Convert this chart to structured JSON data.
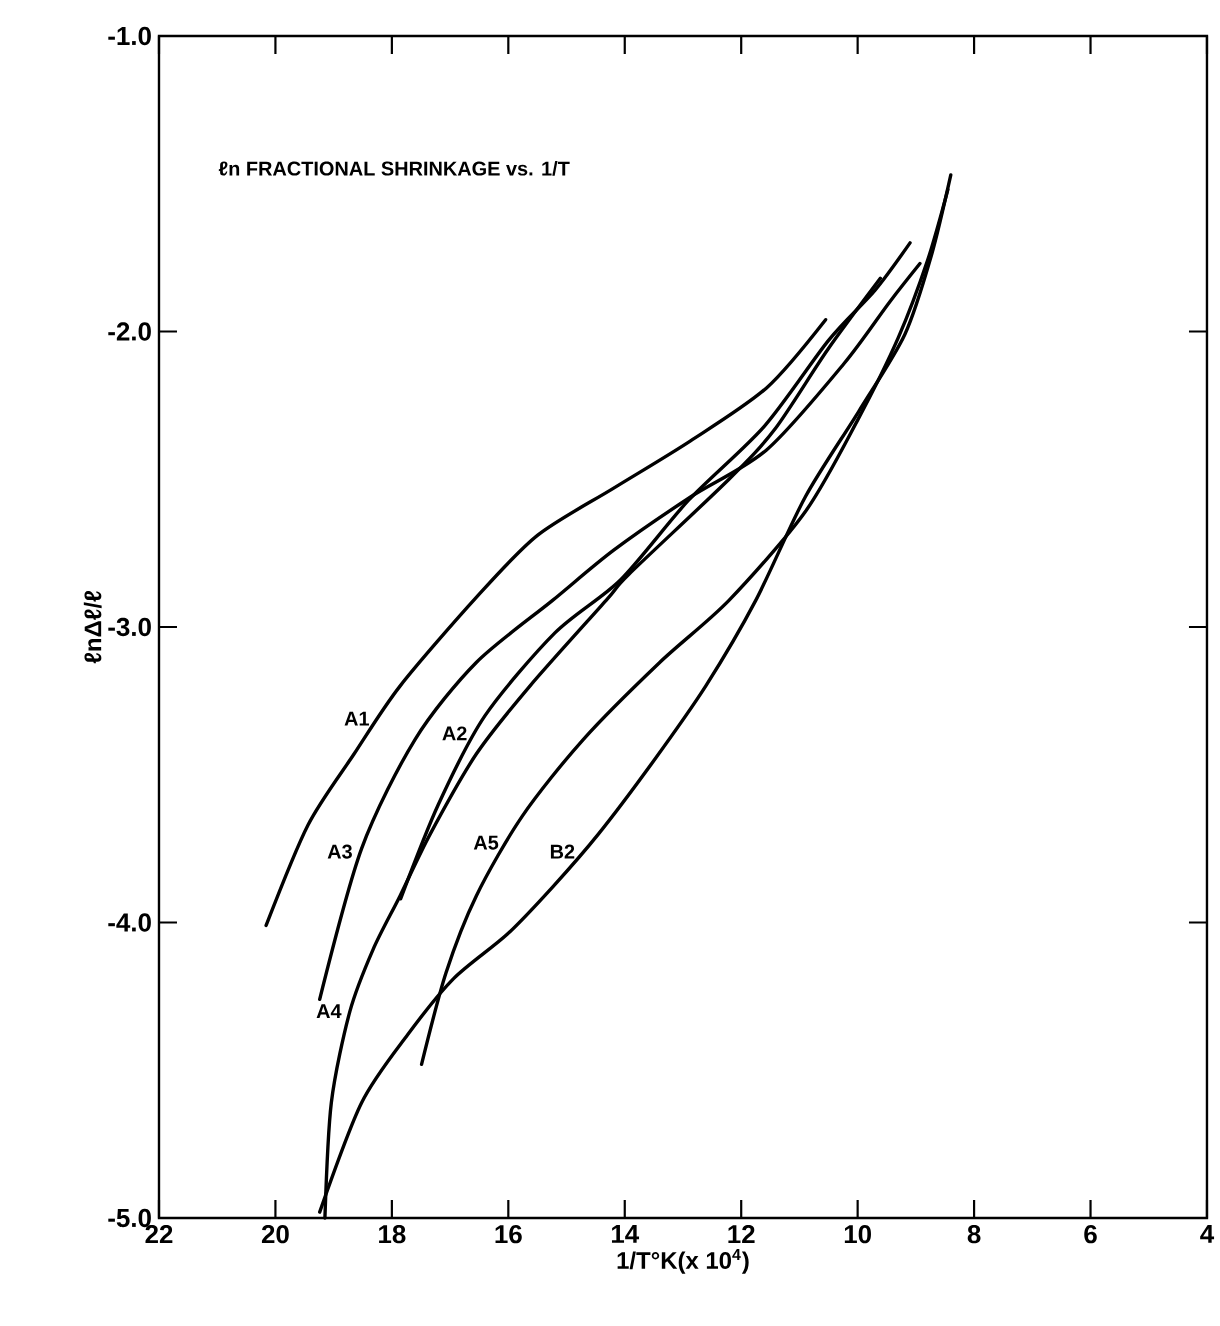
{
  "chart_data": {
    "type": "line",
    "title": "ℓn FRACTIONAL SHRINKAGE vs. 1/T",
    "xlabel": "1/T°K(x 10$^{4}$)",
    "ylabel": "ℓnΔℓ/ℓ",
    "xlim": [
      22,
      4
    ],
    "ylim": [
      -5,
      -1
    ],
    "xticks": [
      22,
      20,
      18,
      16,
      14,
      12,
      10,
      8,
      6,
      4
    ],
    "yticks": [
      {
        "value": -5,
        "label": "-5.0"
      },
      {
        "value": -4,
        "label": "-4.0"
      },
      {
        "value": -3,
        "label": "-3.0"
      },
      {
        "value": -2,
        "label": "-2.0"
      },
      {
        "value": -1,
        "label": "-1.0"
      }
    ],
    "grid": false,
    "marker": "none",
    "line_style": "solid",
    "series": [
      {
        "color": "#000000",
        "x": [
          20.16,
          19.44,
          18.65,
          17.86,
          16.55,
          15.5,
          14.19,
          12.87,
          11.56,
          10.55
        ],
        "values": [
          -4.01,
          -3.67,
          -3.43,
          -3.2,
          -2.9,
          -2.69,
          -2.53,
          -2.37,
          -2.19,
          -1.96
        ]
      },
      {
        "color": "#000000",
        "x": [
          19.24,
          18.52,
          17.6,
          16.55,
          15.24,
          14.19,
          12.87,
          11.56,
          10.24,
          9.45,
          8.93
        ],
        "values": [
          -4.26,
          -3.75,
          -3.38,
          -3.12,
          -2.91,
          -2.74,
          -2.56,
          -2.4,
          -2.11,
          -1.9,
          -1.77
        ]
      },
      {
        "color": "#000000",
        "x": [
          17.85,
          17.2,
          16.4,
          15.2,
          14.07,
          12.9,
          11.6,
          10.5,
          9.7,
          9.1
        ],
        "values": [
          -3.92,
          -3.6,
          -3.3,
          -3.02,
          -2.84,
          -2.57,
          -2.32,
          -2.03,
          -1.86,
          -1.7
        ]
      },
      {
        "color": "#000000",
        "x": [
          19.15,
          19.04,
          18.72,
          18.32,
          17.86,
          17.34,
          16.55,
          15.63,
          14.32,
          13.92,
          12.21,
          11.42,
          10.51,
          9.61
        ],
        "values": [
          -5.0,
          -4.61,
          -4.3,
          -4.09,
          -3.91,
          -3.7,
          -3.43,
          -3.2,
          -2.91,
          -2.82,
          -2.5,
          -2.33,
          -2.06,
          -1.82
        ]
      },
      {
        "color": "#000000",
        "x": [
          17.49,
          17.07,
          16.55,
          15.76,
          14.71,
          13.4,
          12.21,
          10.9,
          10.0,
          9.3,
          8.8,
          8.45
        ],
        "values": [
          -4.48,
          -4.17,
          -3.91,
          -3.64,
          -3.38,
          -3.12,
          -2.91,
          -2.61,
          -2.3,
          -2.02,
          -1.76,
          -1.52
        ]
      },
      {
        "color": "#000000",
        "x": [
          19.24,
          18.52,
          17.73,
          16.94,
          16.02,
          15.24,
          14.45,
          13.53,
          12.61,
          11.75,
          10.9,
          9.98,
          9.19,
          8.73,
          8.4
        ],
        "values": [
          -4.98,
          -4.61,
          -4.38,
          -4.19,
          -4.04,
          -3.88,
          -3.7,
          -3.46,
          -3.2,
          -2.91,
          -2.56,
          -2.27,
          -2.01,
          -1.74,
          -1.47
        ]
      }
    ],
    "annotations": [
      {
        "text": "A1",
        "x": 18.24,
        "y": -3.31
      },
      {
        "text": "A2",
        "x": 16.56,
        "y": -3.36
      },
      {
        "text": "A3",
        "x": 18.53,
        "y": -3.76
      },
      {
        "text": "A5",
        "x": 16.02,
        "y": -3.73
      },
      {
        "text": "B2",
        "x": 14.71,
        "y": -3.76
      },
      {
        "text": "A4",
        "x": 18.72,
        "y": -4.3
      }
    ]
  }
}
